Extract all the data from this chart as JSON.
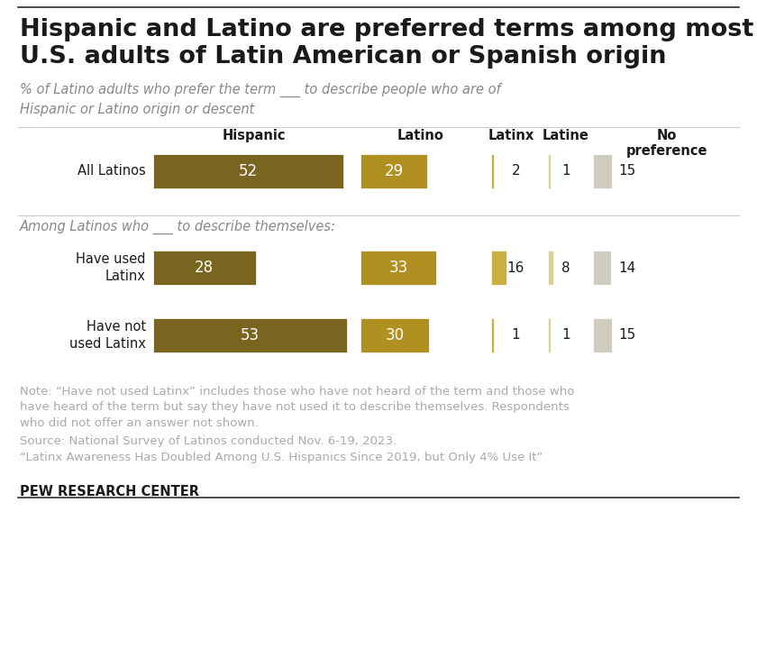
{
  "title": "Hispanic and Latino are preferred terms among most\nU.S. adults of Latin American or Spanish origin",
  "subtitle": "% of Latino adults who prefer the term ___ to describe people who are of\nHispanic or Latino origin or descent",
  "col_headers": [
    "Hispanic",
    "Latino",
    "Latinx",
    "Latine",
    "No\npreference"
  ],
  "row_labels": [
    "All Latinos",
    "Have used\nLatinx",
    "Have not\nused Latinx"
  ],
  "values": [
    [
      52,
      29,
      2,
      1,
      15
    ],
    [
      28,
      33,
      16,
      8,
      14
    ],
    [
      53,
      30,
      1,
      1,
      15
    ]
  ],
  "col_colors": [
    "#7a6520",
    "#b09020",
    "#c8b040",
    "#ddd090",
    "#d0ccc0"
  ],
  "section_label": "Among Latinos who ___ to describe themselves:",
  "note_text": "Note: “Have not used Latinx” includes those who have not heard of the term and those who\nhave heard of the term but say they have not used it to describe themselves. Respondents\nwho did not offer an answer not shown.",
  "source_line1": "Source: National Survey of Latinos conducted Nov. 6-19, 2023.",
  "source_line2": "“Latinx Awareness Has Doubled Among U.S. Hispanics Since 2019, but Only 4% Use It”",
  "branding": "PEW RESEARCH CENTER",
  "bg_color": "#ffffff",
  "text_dark": "#1a1a1a",
  "text_gray": "#999999",
  "line_color": "#cccccc",
  "border_color": "#333333"
}
